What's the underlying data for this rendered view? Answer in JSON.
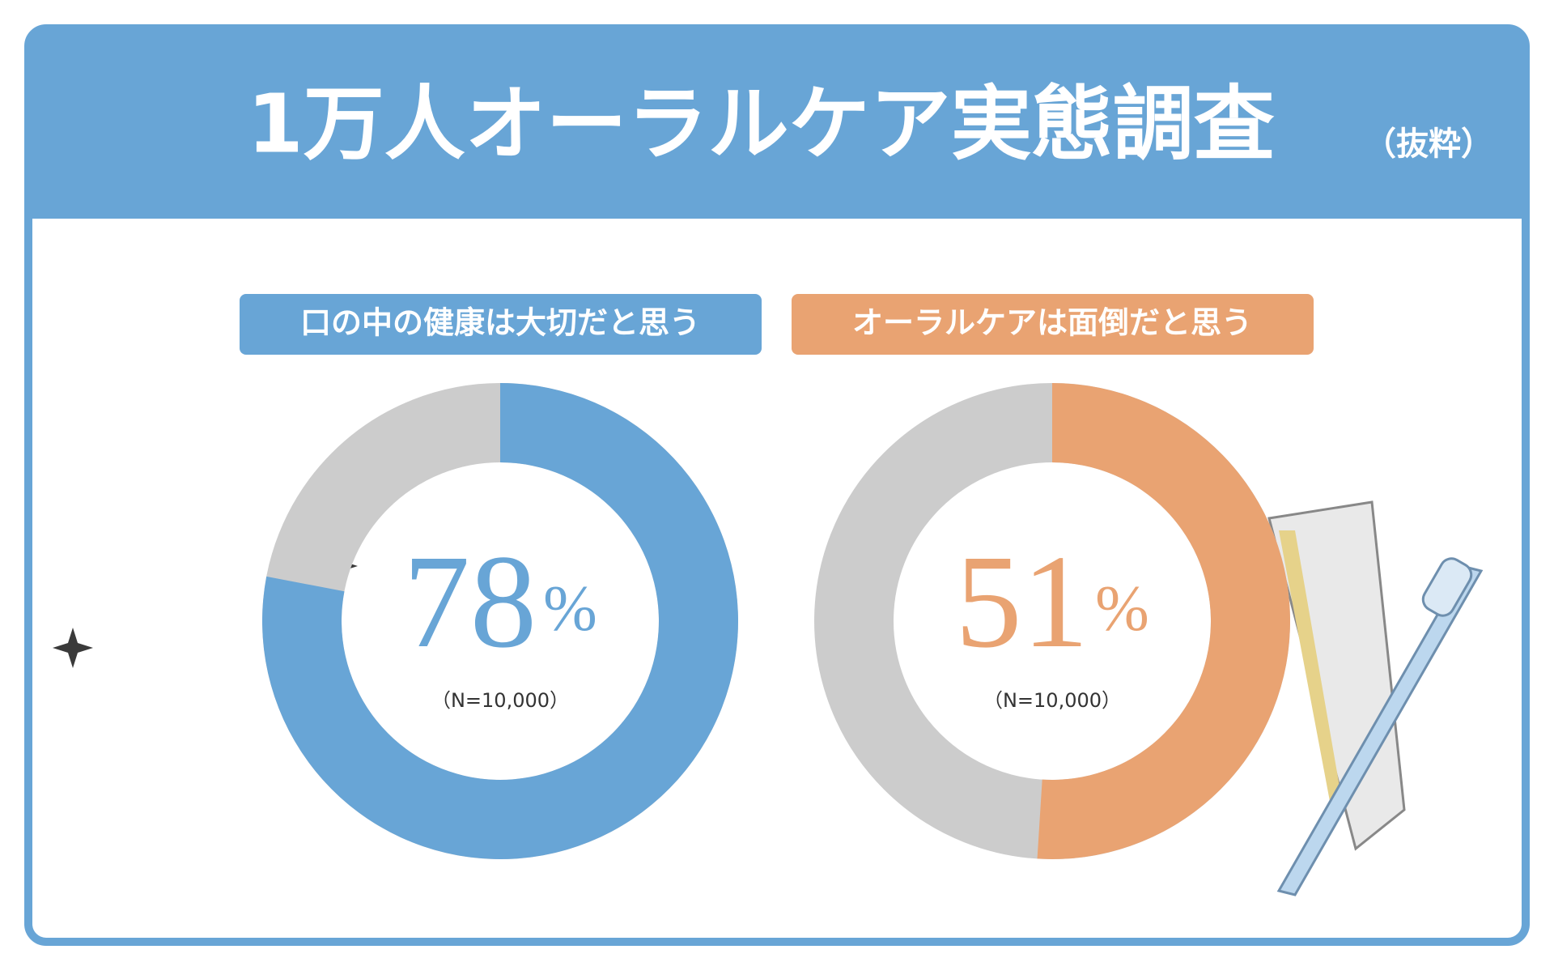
{
  "header": {
    "title": "1万人オーラルケア実態調査",
    "subtitle": "（抜粋）"
  },
  "chart_data": [
    {
      "type": "donut",
      "title": "口の中の健康は大切だと思う",
      "value": 78,
      "value_label": "78%",
      "note": "（N=10,000）",
      "color": "#68a5d6",
      "track_color": "#cccccc",
      "range": [
        0,
        100
      ]
    },
    {
      "type": "donut",
      "title": "オーラルケアは面倒だと思う",
      "value": 51,
      "value_label": "51%",
      "note": "（N=10,000）",
      "color": "#e9a372",
      "track_color": "#cccccc",
      "range": [
        0,
        100
      ]
    }
  ]
}
